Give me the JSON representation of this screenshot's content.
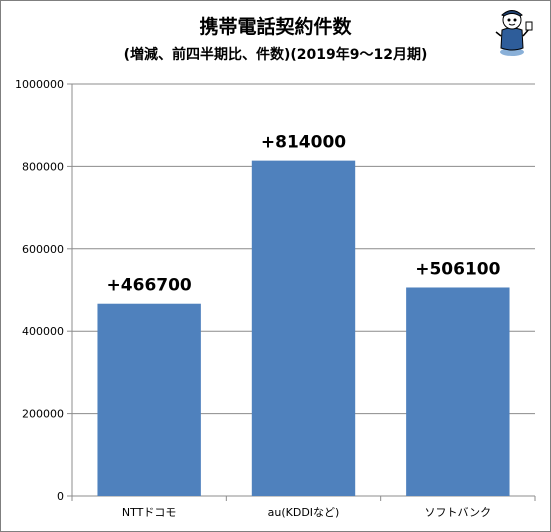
{
  "chart_data": {
    "type": "bar",
    "title": "携帯電話契約件数",
    "subtitle": "(増減、前四半期比、件数)(2019年9～12月期)",
    "categories": [
      "NTTドコモ",
      "au(KDDIなど)",
      "ソフトバンク"
    ],
    "values": [
      466700,
      814000,
      506100
    ],
    "data_labels": [
      "+466700",
      "+814000",
      "+506100"
    ],
    "yticks": [
      0,
      200000,
      400000,
      600000,
      800000,
      1000000
    ],
    "ylim": [
      0,
      1000000
    ],
    "bar_color": "#4f81bd",
    "grid": true,
    "legend": "none"
  }
}
